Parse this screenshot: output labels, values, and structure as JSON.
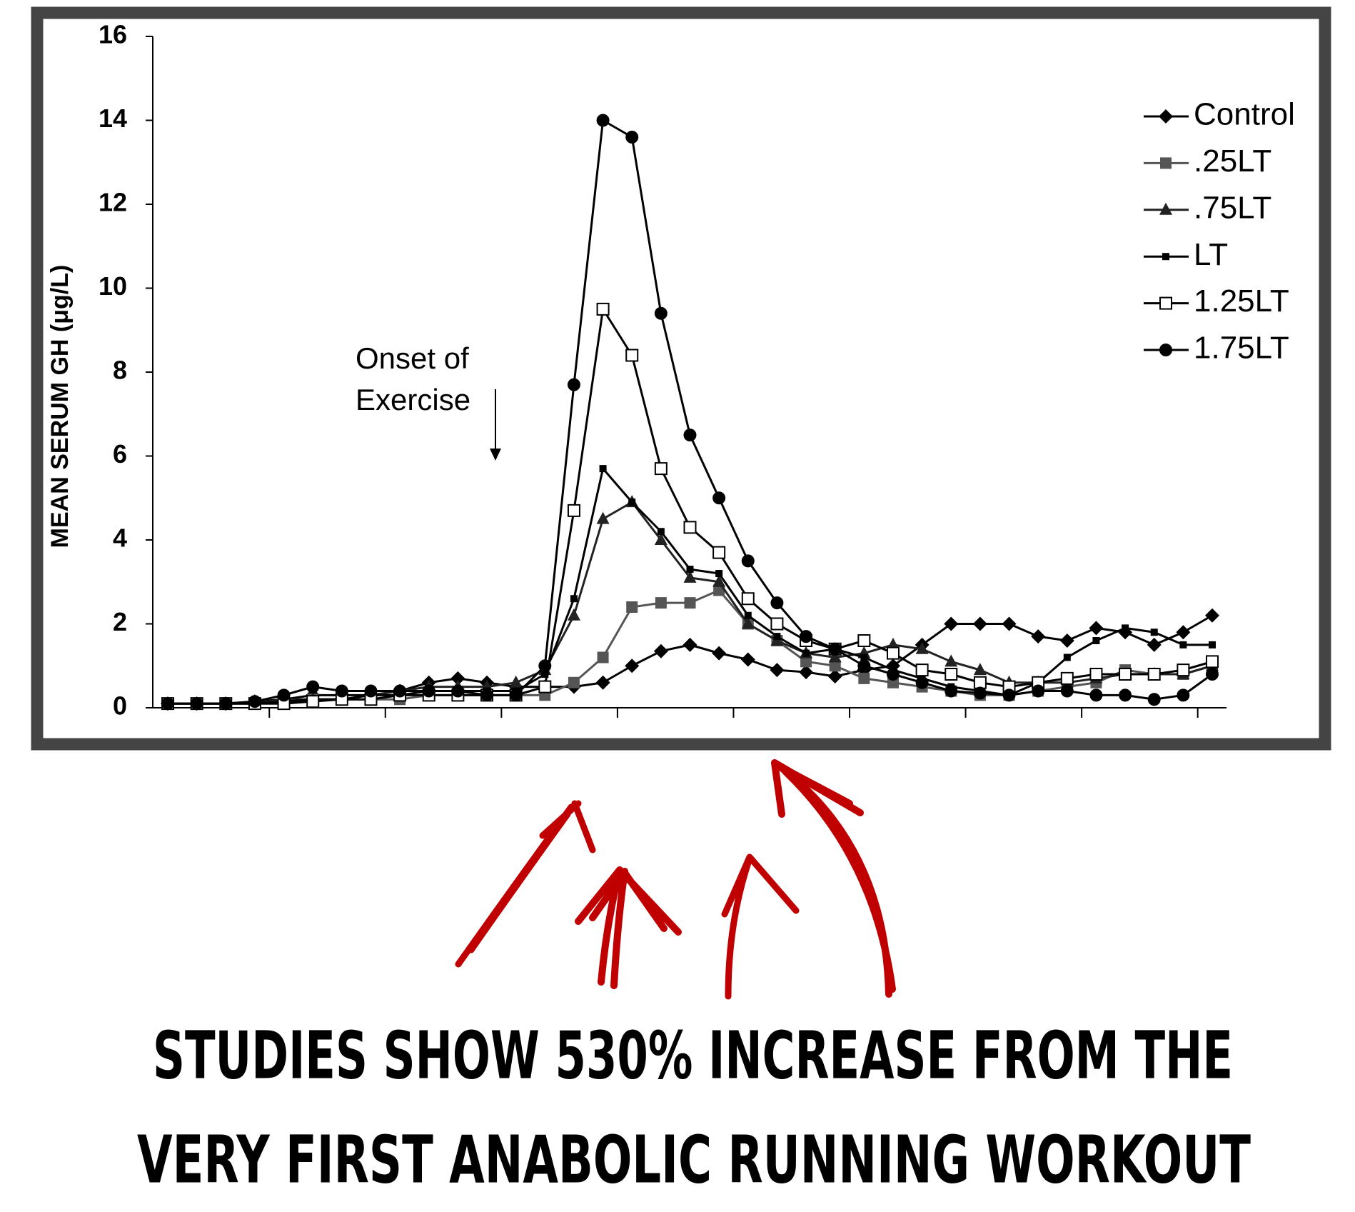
{
  "chart_data": {
    "type": "line",
    "ylabel": "MEAN SERUM GH (μg/L)",
    "annotation": [
      "Onset of",
      "Exercise"
    ],
    "caption": [
      "STUDIES SHOW 530% INCREASE FROM THE",
      "VERY FIRST ANABOLIC RUNNING WORKOUT"
    ],
    "categories": [
      null,
      null,
      null,
      null,
      null,
      null,
      null,
      null,
      null,
      null,
      null,
      null,
      null,
      null,
      null,
      null,
      null,
      null,
      null,
      null,
      null,
      null,
      null,
      null,
      null,
      null,
      null,
      null,
      null,
      null,
      null,
      null,
      null,
      null,
      null,
      null,
      null
    ],
    "ylim": [
      0,
      16
    ],
    "yticks": [
      0,
      2,
      4,
      6,
      8,
      10,
      12,
      14,
      16
    ],
    "series": [
      {
        "name": "Control",
        "color": "#000000",
        "marker": "diamond",
        "values": [
          0.1,
          0.1,
          0.1,
          0.15,
          0.2,
          0.3,
          0.3,
          0.3,
          0.4,
          0.6,
          0.7,
          0.6,
          0.5,
          0.5,
          0.5,
          0.6,
          1.0,
          1.35,
          1.5,
          1.3,
          1.15,
          0.9,
          0.85,
          0.75,
          0.9,
          1.0,
          1.5,
          2.0,
          2.0,
          2.0,
          1.7,
          1.6,
          1.9,
          1.8,
          1.5,
          1.8,
          2.2
        ]
      },
      {
        "name": ".25LT",
        "color": "#555555",
        "marker": "square",
        "values": [
          0.1,
          0.1,
          0.1,
          0.1,
          0.1,
          0.2,
          0.2,
          0.2,
          0.2,
          0.3,
          0.3,
          0.3,
          0.3,
          0.3,
          0.6,
          1.2,
          2.4,
          2.5,
          2.5,
          2.8,
          2.0,
          1.6,
          1.1,
          1.0,
          0.7,
          0.6,
          0.5,
          0.4,
          0.3,
          0.3,
          0.4,
          0.5,
          0.6,
          0.9,
          0.8,
          0.8,
          1.0
        ]
      },
      {
        "name": ".75LT",
        "color": "#222222",
        "marker": "triangle",
        "values": [
          0.1,
          0.1,
          0.1,
          0.1,
          0.2,
          0.2,
          0.2,
          0.3,
          0.4,
          0.5,
          0.5,
          0.5,
          0.6,
          0.9,
          2.2,
          4.5,
          4.9,
          4.0,
          3.1,
          3.0,
          2.0,
          1.6,
          1.3,
          1.2,
          1.3,
          1.5,
          1.4,
          1.1,
          0.9,
          0.6,
          0.6,
          0.6,
          0.7,
          0.8,
          0.8,
          0.8,
          1.0
        ]
      },
      {
        "name": "LT",
        "color": "#000000",
        "marker": "small-square",
        "values": [
          0.1,
          0.1,
          0.1,
          0.1,
          0.15,
          0.2,
          0.2,
          0.3,
          0.3,
          0.4,
          0.4,
          0.4,
          0.4,
          0.8,
          2.6,
          5.7,
          4.9,
          4.2,
          3.3,
          3.2,
          2.2,
          1.7,
          1.3,
          1.4,
          1.2,
          0.9,
          0.7,
          0.5,
          0.4,
          0.3,
          0.6,
          1.2,
          1.6,
          1.9,
          1.8,
          1.5,
          1.5
        ]
      },
      {
        "name": "1.25LT",
        "color": "#000000",
        "marker": "open-square",
        "values": [
          0.1,
          0.1,
          0.1,
          0.1,
          0.1,
          0.15,
          0.2,
          0.2,
          0.3,
          0.3,
          0.3,
          0.3,
          0.3,
          0.5,
          4.7,
          9.5,
          8.4,
          5.7,
          4.3,
          3.7,
          2.6,
          2.0,
          1.6,
          1.4,
          1.6,
          1.3,
          0.9,
          0.8,
          0.6,
          0.5,
          0.6,
          0.7,
          0.8,
          0.8,
          0.8,
          0.9,
          1.1
        ]
      },
      {
        "name": "1.75LT",
        "color": "#000000",
        "marker": "circle",
        "values": [
          0.1,
          0.1,
          0.1,
          0.15,
          0.3,
          0.5,
          0.4,
          0.4,
          0.4,
          0.4,
          0.4,
          0.3,
          0.3,
          1.0,
          7.7,
          14,
          13.6,
          9.4,
          6.5,
          5.0,
          3.5,
          2.5,
          1.7,
          1.4,
          1.0,
          0.8,
          0.6,
          0.4,
          0.35,
          0.3,
          0.4,
          0.4,
          0.3,
          0.3,
          0.2,
          0.3,
          0.8
        ]
      }
    ]
  }
}
